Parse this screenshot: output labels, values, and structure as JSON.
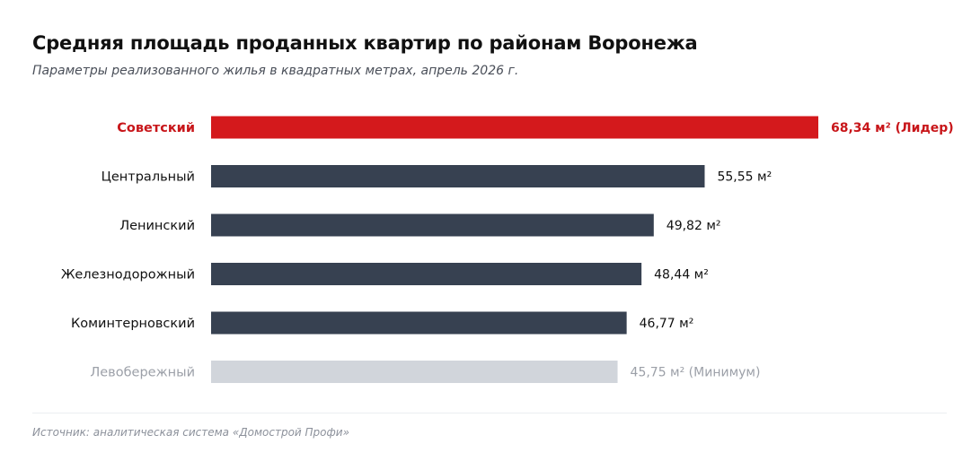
{
  "chart_data": {
    "type": "bar",
    "orientation": "horizontal",
    "title": "Средняя площадь проданных квартир по районам Воронежа",
    "subtitle": "Параметры реализованного жилья в квадратных метрах, апрель 2026 г.",
    "categories": [
      "Советский",
      "Центральный",
      "Ленинский",
      "Железнодорожный",
      "Коминтерновский",
      "Левобережный"
    ],
    "values": [
      68.34,
      55.55,
      49.82,
      48.44,
      46.77,
      45.75
    ],
    "data_labels": [
      "68,34 м² (Лидер)",
      "55,55 м²",
      "49,82 м²",
      "48,44 м²",
      "46,77 м²",
      "45,75 м² (Минимум)"
    ],
    "highlight": [
      "leader",
      "normal",
      "normal",
      "normal",
      "normal",
      "minimum"
    ],
    "xlabel": "",
    "ylabel": "",
    "xlim": [
      0,
      68.34
    ],
    "grid": false,
    "legend": "none",
    "source": "Источник: аналитическая система «Домострой Профи»",
    "colors": {
      "leader_bar": "#d4191c",
      "leader_text": "#c8161a",
      "normal_bar": "#374151",
      "normal_text": "#111111",
      "minimum_bar": "#d1d5db",
      "minimum_text": "#9ca0a8"
    }
  }
}
